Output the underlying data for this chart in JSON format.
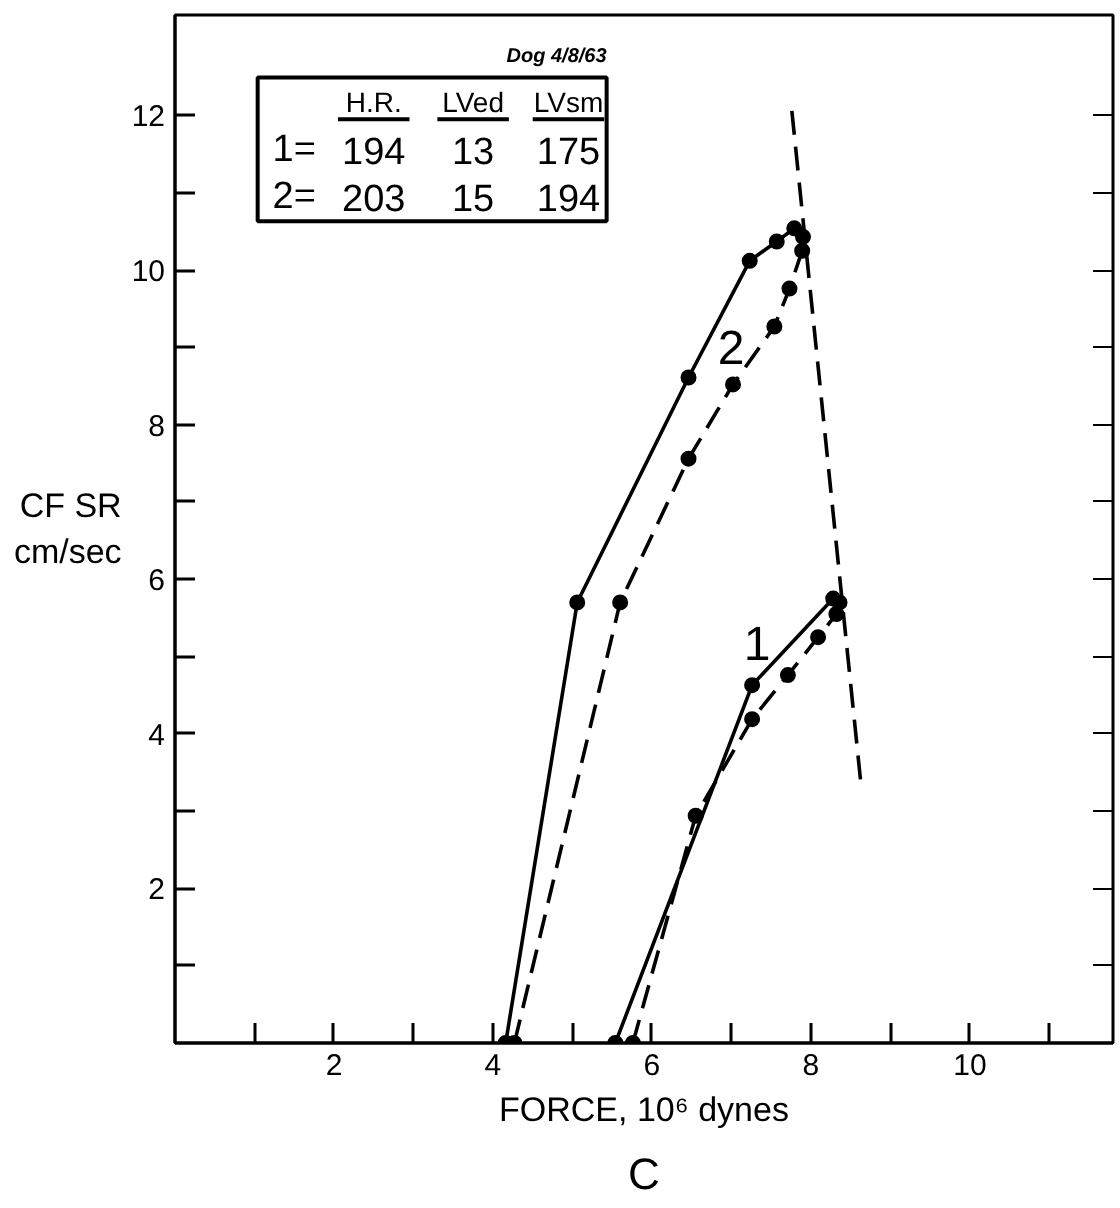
{
  "chart_data": {
    "type": "line",
    "xlabel": "FORCE, 10⁶ dynes",
    "ylabel": "CF SR\ncm/sec",
    "marker": "circle",
    "grid": false,
    "xlim": [
      0,
      11.8
    ],
    "ylim": [
      0,
      13.3
    ],
    "xticks": [
      {
        "value": 1,
        "label": null
      },
      2,
      {
        "value": 3,
        "label": null
      },
      4,
      {
        "value": 5,
        "label": null
      },
      6,
      {
        "value": 7,
        "label": null
      },
      8,
      {
        "value": 9,
        "label": null
      },
      10,
      {
        "value": 11,
        "label": null
      }
    ],
    "yticks": [
      {
        "value": 1,
        "label": null
      },
      2,
      {
        "value": 3,
        "label": null
      },
      4,
      {
        "value": 5,
        "label": null
      },
      6,
      {
        "value": 7,
        "label": null
      },
      8,
      {
        "value": 9,
        "label": null
      },
      10,
      {
        "value": 11,
        "label": null
      },
      12
    ],
    "series": [
      {
        "color": "#000000",
        "line_style": "dashed",
        "x": [
          4.27,
          5.6,
          6.46,
          7.02,
          7.54,
          7.73,
          7.89,
          7.9
        ],
        "values": [
          0,
          5.7,
          7.56,
          8.52,
          9.27,
          9.76,
          10.25,
          10.43
        ]
      },
      {
        "color": "#000000",
        "line_style": "solid",
        "x": [
          7.79,
          7.57,
          7.23,
          6.46,
          5.06,
          4.16
        ],
        "values": [
          10.54,
          10.37,
          10.12,
          8.61,
          5.7,
          0
        ]
      },
      {
        "color": "#000000",
        "line_style": "dashed",
        "x": [
          5.76,
          6.55,
          7.26,
          7.71,
          8.09,
          8.32,
          8.36
        ],
        "values": [
          0,
          2.94,
          4.19,
          4.76,
          5.25,
          5.55,
          5.7
        ]
      },
      {
        "color": "#000000",
        "line_style": "solid",
        "x": [
          8.28,
          7.26,
          5.54
        ],
        "values": [
          5.75,
          4.63,
          0
        ]
      },
      {
        "color": "#000000",
        "line_style": "dashed",
        "marker": "none",
        "x": [
          7.76,
          8.63
        ],
        "values": [
          12.06,
          3.34
        ]
      }
    ],
    "annotations": [
      "2",
      "1",
      "Dog 4/8/63",
      "H.R.",
      "LVed",
      "LVsm",
      "1=",
      "194",
      "13",
      "175",
      "2=",
      "203",
      "15",
      "194",
      "C"
    ]
  }
}
